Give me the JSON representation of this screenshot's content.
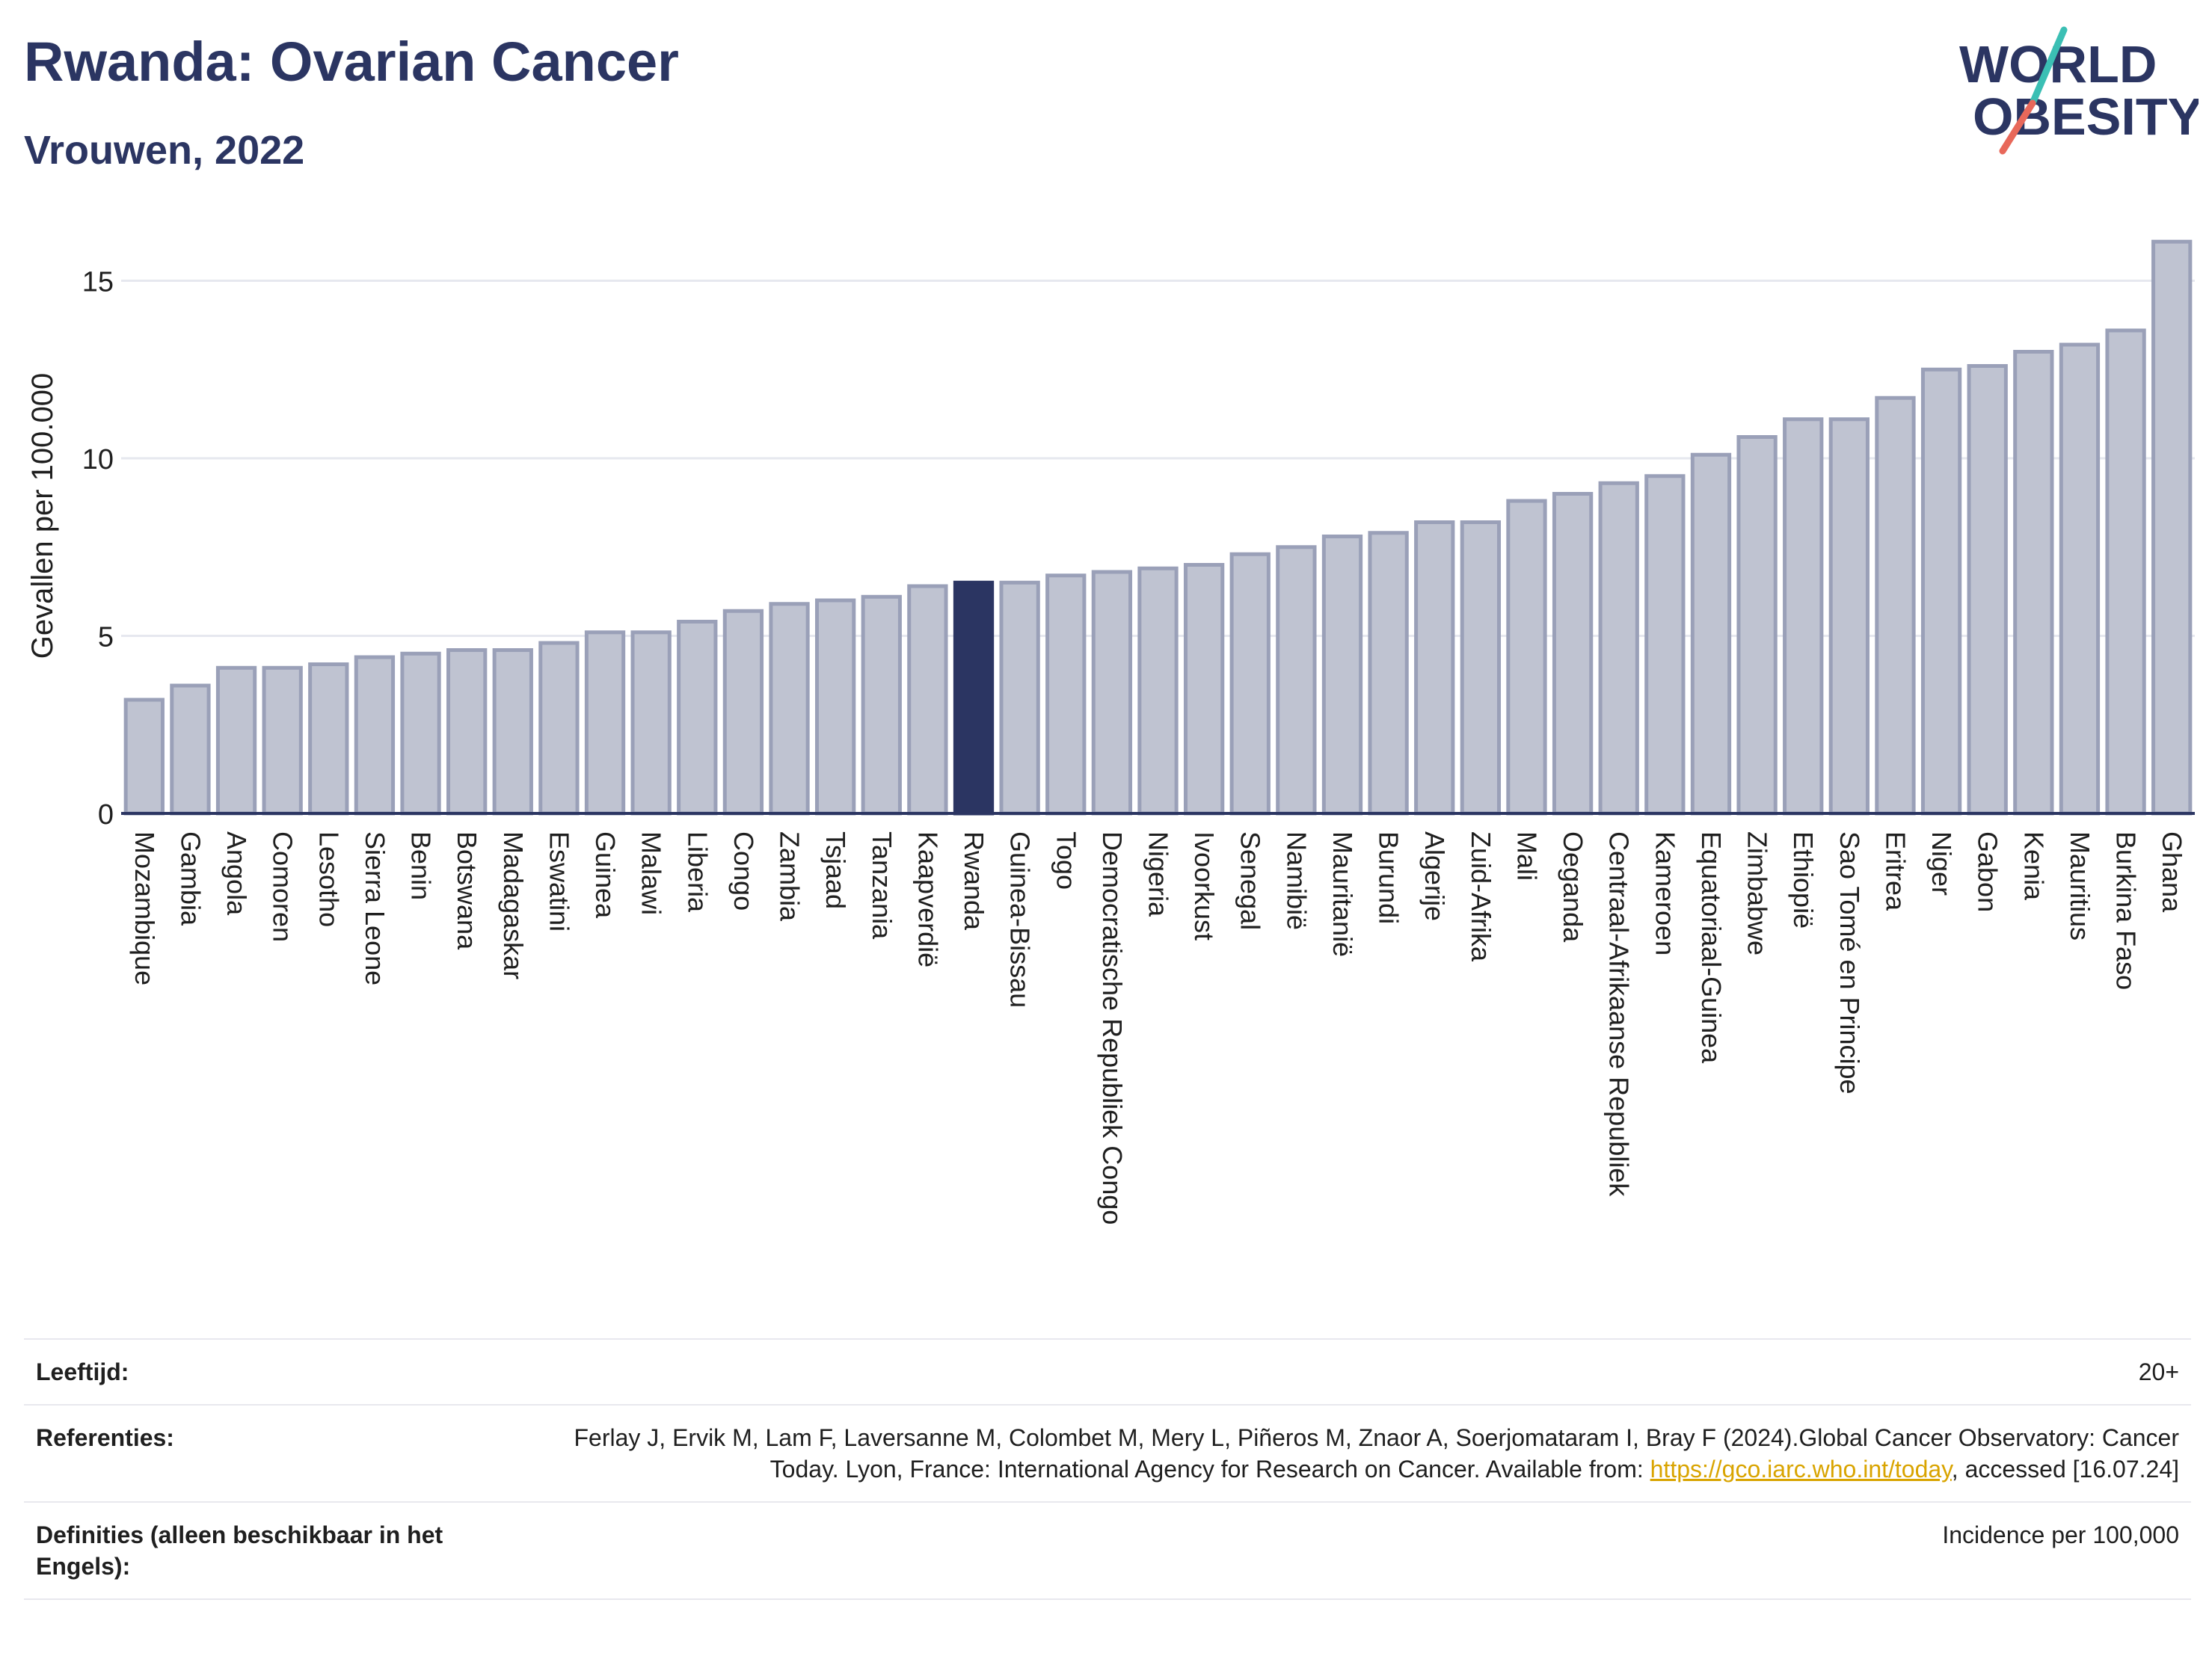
{
  "header": {
    "title": "Rwanda: Ovarian Cancer",
    "subtitle": "Vrouwen, 2022",
    "logo_line1": "WORLD",
    "logo_line2": "OBESITY"
  },
  "colors": {
    "bar": "#bfc3d1",
    "bar_border": "#9aa0b8",
    "highlight": "#2b3562",
    "title": "#2b3562",
    "logo_teal": "#3bbfb4",
    "logo_coral": "#e8685a"
  },
  "chart_data": {
    "type": "bar",
    "ylabel": "Gevallen per 100.000",
    "ylim": [
      0,
      16.8
    ],
    "yticks": [
      0,
      5,
      10,
      15
    ],
    "grid": true,
    "highlight": "Rwanda",
    "categories": [
      "Mozambique",
      "Gambia",
      "Angola",
      "Comoren",
      "Lesotho",
      "Sierra Leone",
      "Benin",
      "Botswana",
      "Madagaskar",
      "Eswatini",
      "Guinea",
      "Malawi",
      "Liberia",
      "Congo",
      "Zambia",
      "Tsjaad",
      "Tanzania",
      "Kaapverdië",
      "Rwanda",
      "Guinea-Bissau",
      "Togo",
      "Democratische Republiek Congo",
      "Nigeria",
      "Ivoorkust",
      "Senegal",
      "Namibië",
      "Mauritanië",
      "Burundi",
      "Algerije",
      "Zuid-Afrika",
      "Mali",
      "Oeganda",
      "Centraal-Afrikaanse Republiek",
      "Kameroen",
      "Equatoriaal-Guinea",
      "Zimbabwe",
      "Ethiopië",
      "Sao Tomé en Principe",
      "Eritrea",
      "Niger",
      "Gabon",
      "Kenia",
      "Mauritius",
      "Burkina Faso",
      "Ghana"
    ],
    "values": [
      3.2,
      3.6,
      4.1,
      4.1,
      4.2,
      4.4,
      4.5,
      4.6,
      4.6,
      4.8,
      5.1,
      5.1,
      5.4,
      5.7,
      5.9,
      6.0,
      6.1,
      6.4,
      6.5,
      6.5,
      6.7,
      6.8,
      6.9,
      7.0,
      7.3,
      7.5,
      7.8,
      7.9,
      8.2,
      8.2,
      8.8,
      9.0,
      9.3,
      9.5,
      10.1,
      10.6,
      11.1,
      11.1,
      11.7,
      12.5,
      12.6,
      13.0,
      13.2,
      13.6,
      16.1
    ]
  },
  "meta": {
    "age_label": "Leeftijd:",
    "age_value": "20+",
    "ref_label": "Referenties:",
    "ref_text_before": "Ferlay J, Ervik M, Lam F, Laversanne M, Colombet M, Mery L, Piñeros M, Znaor A, Soerjomataram I, Bray F (2024).Global Cancer Observatory: Cancer Today. Lyon, France: International Agency for Research on Cancer. Available from: ",
    "ref_link": "https://gco.iarc.who.int/today",
    "ref_text_after": ", accessed [16.07.24]",
    "def_label": "Definities (alleen beschikbaar in het Engels):",
    "def_value": "Incidence per 100,000"
  }
}
